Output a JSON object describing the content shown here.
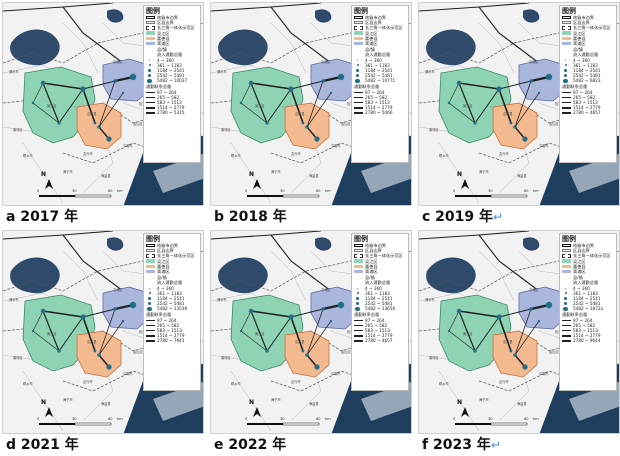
{
  "panels": [
    {
      "caption": "a 2017 年",
      "ret": "",
      "max_flow": "5482 ~ 10037",
      "max_link": "2780 ~ 5315"
    },
    {
      "caption": "b 2018 年",
      "ret": "",
      "max_flow": "5482 ~ 10771",
      "max_link": "2780 ~ 5466"
    },
    {
      "caption": "c 2019 年",
      "ret": "↵",
      "max_flow": "5482 ~ 6823",
      "max_link": "2780 ~ 4657"
    },
    {
      "caption": "d 2021 年",
      "ret": "",
      "max_flow": "5482 ~ 13539",
      "max_link": "2780 ~ 7641"
    },
    {
      "caption": "e 2022 年",
      "ret": "",
      "max_flow": "5482 ~ 13656",
      "max_link": "2780 ~ 4657"
    },
    {
      "caption": "f 2023 年",
      "ret": "↵",
      "max_flow": "5482 ~ 1872a",
      "max_link": "2780 ~ 9644"
    }
  ],
  "legend": {
    "title": "图例",
    "boundary_city": "地级市边界",
    "boundary_county": "区县边界",
    "demo_zone": "长三角一体化示范区",
    "wujiang": "吴江区",
    "jiashan": "嘉善县",
    "qingpu": "青浦区",
    "nodes_heading": "县/镇",
    "inflow_heading": "流入通勤总量",
    "flow_classes": [
      "4 ~ 360",
      "361 ~ 1183",
      "1184 ~ 2541",
      "2542 ~ 5481"
    ],
    "link_heading": "通勤联系总量",
    "link_classes": [
      "97 ~ 264",
      "265 ~ 582",
      "583 ~ 1513",
      "1514 ~ 2779"
    ]
  },
  "map": {
    "north": "N",
    "scale": [
      "0",
      "30",
      "60"
    ],
    "scale_unit": "km",
    "places": [
      "吴江区",
      "湖州市",
      "嘉兴市",
      "青浦区",
      "海宁市",
      "平湖市",
      "嘉善县",
      "海盐县",
      "桐乡市",
      "南浔区",
      "金山区",
      "松江区"
    ]
  },
  "colors": {
    "wujiang": "#8fd3b5",
    "jiashan": "#f3b98f",
    "qingpu": "#aab6dc",
    "sea": "#1f3d5c",
    "lake": "#2f4a6b",
    "node": "#1f6f8b"
  }
}
